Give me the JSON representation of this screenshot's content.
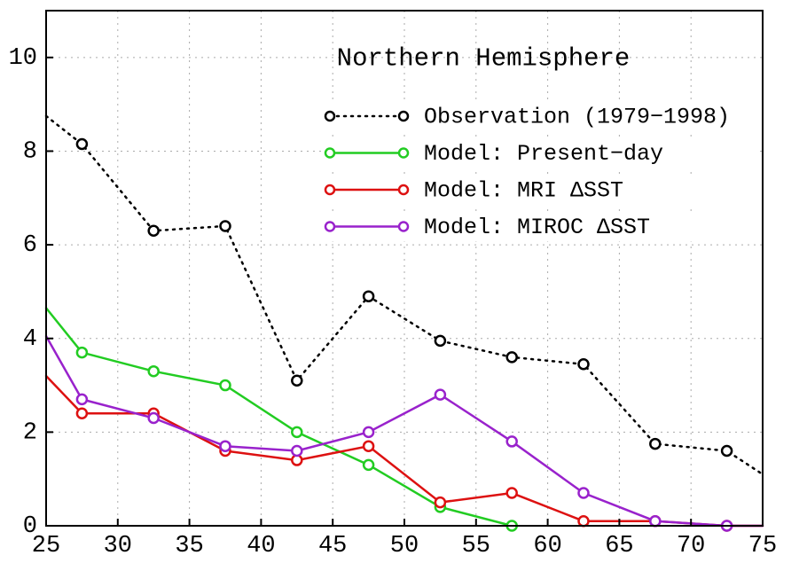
{
  "chart_data": {
    "type": "line",
    "title": "Northern Hemisphere",
    "x": [
      25,
      27.5,
      32.5,
      37.5,
      42.5,
      47.5,
      52.5,
      57.5,
      62.5,
      67.5,
      72.5,
      75
    ],
    "series": [
      {
        "name": "Observation (1979−1998)",
        "color": "#000000",
        "dash": "dotted",
        "values": [
          8.75,
          8.15,
          6.3,
          6.4,
          3.1,
          4.9,
          3.95,
          3.6,
          3.45,
          1.75,
          1.6,
          1.1
        ]
      },
      {
        "name": "Model: Present−day",
        "color": "#22cc22",
        "dash": "solid",
        "values": [
          4.65,
          3.7,
          3.3,
          3.0,
          2.0,
          1.3,
          0.4,
          0,
          null,
          null,
          null,
          null
        ]
      },
      {
        "name": "Model: MRI ΔSST",
        "color": "#dd1111",
        "dash": "solid",
        "values": [
          3.2,
          2.4,
          2.4,
          1.6,
          1.4,
          1.7,
          0.5,
          0.7,
          0.1,
          0.1,
          0,
          0
        ]
      },
      {
        "name": "Model: MIROC ΔSST",
        "color": "#9922cc",
        "dash": "solid",
        "values": [
          4.05,
          2.7,
          2.3,
          1.7,
          1.6,
          2.0,
          2.8,
          1.8,
          0.7,
          0.1,
          0,
          0
        ]
      }
    ],
    "xlim": [
      25,
      75
    ],
    "ylim": [
      0,
      11
    ],
    "xticks": [
      25,
      30,
      35,
      40,
      45,
      50,
      55,
      60,
      65,
      70,
      75
    ],
    "yticks": [
      0,
      2,
      4,
      6,
      8,
      10
    ],
    "grid": true,
    "legend": "upper-right"
  }
}
